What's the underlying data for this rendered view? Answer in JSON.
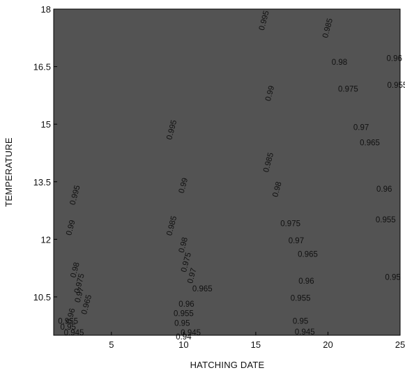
{
  "chart_data": {
    "type": "contour",
    "title": "",
    "xlabel": "HATCHING DATE",
    "ylabel": "TEMPERATURE",
    "xlim": [
      1,
      25
    ],
    "ylim": [
      9.5,
      18
    ],
    "xticks": [
      5,
      10,
      15,
      20,
      25
    ],
    "xtick_labels": [
      "5",
      "10",
      "15",
      "20",
      "25"
    ],
    "yticks": [
      10.5,
      12,
      13.5,
      15,
      16.5,
      18
    ],
    "ytick_labels": [
      "10.5",
      "12",
      "13.5",
      "15",
      "16.5",
      "18"
    ],
    "fill": "grayscale, light at high levels",
    "levels": [
      {
        "value": 0.995,
        "label": "0.995",
        "labels": [
          {
            "x": 2.5,
            "y": 13.15
          },
          {
            "x": 9.2,
            "y": 14.85
          },
          {
            "x": 15.6,
            "y": 17.7
          }
        ]
      },
      {
        "value": 0.99,
        "label": "0.99",
        "labels": [
          {
            "x": 2.2,
            "y": 12.3
          },
          {
            "x": 10.0,
            "y": 13.4
          },
          {
            "x": 16.0,
            "y": 15.8
          }
        ]
      },
      {
        "value": 0.985,
        "label": "0.985",
        "labels": [
          {
            "x": 9.2,
            "y": 12.35
          },
          {
            "x": 15.9,
            "y": 14.0
          },
          {
            "x": 20.0,
            "y": 17.5
          }
        ]
      },
      {
        "value": 0.98,
        "label": "0.98",
        "labels": [
          {
            "x": 2.5,
            "y": 11.2
          },
          {
            "x": 10.0,
            "y": 11.85
          },
          {
            "x": 16.5,
            "y": 13.3
          },
          {
            "x": 20.8,
            "y": 16.6
          }
        ]
      },
      {
        "value": 0.975,
        "label": "0.975",
        "labels": [
          {
            "x": 2.8,
            "y": 10.85
          },
          {
            "x": 10.2,
            "y": 11.4
          },
          {
            "x": 17.4,
            "y": 12.4
          },
          {
            "x": 21.4,
            "y": 15.9
          }
        ]
      },
      {
        "value": 0.97,
        "label": "0.97",
        "labels": [
          {
            "x": 2.8,
            "y": 10.55
          },
          {
            "x": 10.6,
            "y": 11.05
          },
          {
            "x": 17.8,
            "y": 11.95
          },
          {
            "x": 22.3,
            "y": 14.9
          }
        ]
      },
      {
        "value": 0.965,
        "label": "0.965",
        "labels": [
          {
            "x": 3.3,
            "y": 10.3
          },
          {
            "x": 11.3,
            "y": 10.7
          },
          {
            "x": 18.6,
            "y": 11.6
          },
          {
            "x": 22.9,
            "y": 14.5
          }
        ]
      },
      {
        "value": 0.96,
        "label": "0.96",
        "labels": [
          {
            "x": 2.2,
            "y": 10.0
          },
          {
            "x": 10.2,
            "y": 10.3
          },
          {
            "x": 18.5,
            "y": 10.9
          },
          {
            "x": 23.9,
            "y": 13.3
          },
          {
            "x": 24.6,
            "y": 16.7
          }
        ]
      },
      {
        "value": 0.955,
        "label": "0.955",
        "labels": [
          {
            "x": 2.0,
            "y": 9.85
          },
          {
            "x": 10.0,
            "y": 10.05
          },
          {
            "x": 18.1,
            "y": 10.45
          },
          {
            "x": 24.0,
            "y": 12.5
          },
          {
            "x": 24.8,
            "y": 16.0
          }
        ]
      },
      {
        "value": 0.95,
        "label": "0.95",
        "labels": [
          {
            "x": 2.0,
            "y": 9.7
          },
          {
            "x": 9.9,
            "y": 9.8
          },
          {
            "x": 18.1,
            "y": 9.85
          },
          {
            "x": 24.5,
            "y": 11.0
          }
        ]
      },
      {
        "value": 0.945,
        "label": "0.945",
        "labels": [
          {
            "x": 2.4,
            "y": 9.55
          },
          {
            "x": 10.5,
            "y": 9.55
          },
          {
            "x": 18.4,
            "y": 9.57
          }
        ]
      },
      {
        "value": 0.94,
        "label": "0.94",
        "labels": [
          {
            "x": 10.0,
            "y": 9.45
          }
        ]
      }
    ]
  }
}
